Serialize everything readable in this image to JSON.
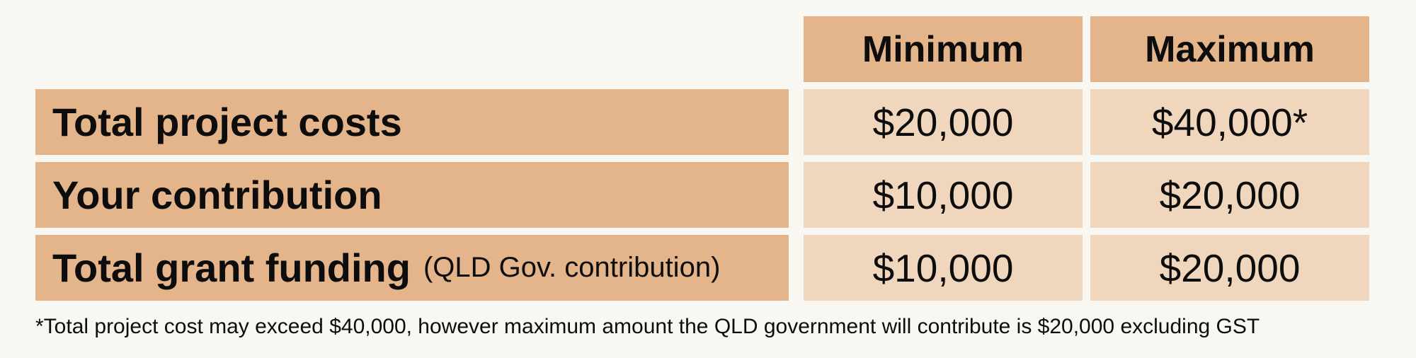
{
  "headers": {
    "minimum": "Minimum",
    "maximum": "Maximum"
  },
  "rows": [
    {
      "label": "Total project costs",
      "sublabel": "",
      "minimum": "$20,000",
      "maximum": "$40,000*"
    },
    {
      "label": "Your contribution",
      "sublabel": "",
      "minimum": "$10,000",
      "maximum": "$20,000"
    },
    {
      "label": "Total grant funding",
      "sublabel": "(QLD Gov. contribution)",
      "minimum": "$10,000",
      "maximum": "$20,000"
    }
  ],
  "footnote": "*Total project cost may exceed $40,000, however maximum amount the QLD government will contribute is $20,000 excluding GST",
  "colors": {
    "background": "#f8f7f1",
    "header_fill": "#e4b48a",
    "value_fill": "#f0d6bd",
    "text": "#0d0d0d"
  }
}
